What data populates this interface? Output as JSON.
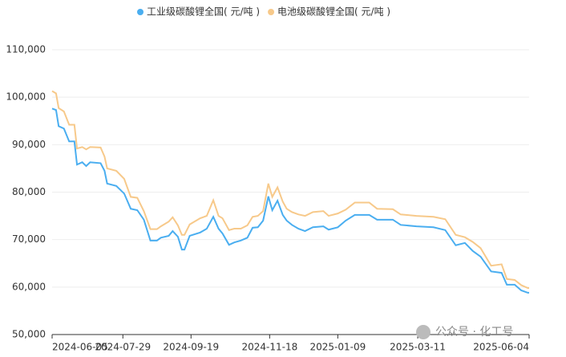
{
  "chart_data": {
    "type": "line",
    "x": [
      "2024-06-05",
      "2024-06-08",
      "2024-06-10",
      "2024-06-14",
      "2024-06-18",
      "2024-06-22",
      "2024-06-24",
      "2024-06-28",
      "2024-07-01",
      "2024-07-04",
      "2024-07-12",
      "2024-07-15",
      "2024-07-17",
      "2024-07-24",
      "2024-07-30",
      "2024-08-04",
      "2024-08-09",
      "2024-08-14",
      "2024-08-19",
      "2024-08-24",
      "2024-08-27",
      "2024-09-02",
      "2024-09-05",
      "2024-09-09",
      "2024-09-12",
      "2024-09-14",
      "2024-09-18",
      "2024-09-26",
      "2024-10-01",
      "2024-10-06",
      "2024-10-10",
      "2024-10-13",
      "2024-10-18",
      "2024-10-22",
      "2024-10-27",
      "2024-11-01",
      "2024-11-05",
      "2024-11-09",
      "2024-11-13",
      "2024-11-17",
      "2024-11-20",
      "2024-11-24",
      "2024-11-28",
      "2024-12-01",
      "2024-12-05",
      "2024-12-10",
      "2024-12-15",
      "2024-12-21",
      "2024-12-29",
      "2025-01-02",
      "2025-01-09",
      "2025-01-15",
      "2025-01-22",
      "2025-02-02",
      "2025-02-08",
      "2025-02-20",
      "2025-02-26",
      "2025-03-10",
      "2025-03-23",
      "2025-04-01",
      "2025-04-09",
      "2025-04-16",
      "2025-04-22",
      "2025-04-28",
      "2025-05-06",
      "2025-05-14",
      "2025-05-18",
      "2025-05-24",
      "2025-05-29",
      "2025-06-03",
      "2025-06-04"
    ],
    "series": [
      {
        "name": "工业级碳酸锂全国( 元/吨 )",
        "color": "#4aaef0",
        "values": [
          97600,
          97300,
          93900,
          93400,
          90700,
          90700,
          85800,
          86300,
          85500,
          86300,
          86100,
          84500,
          81800,
          81300,
          79700,
          76500,
          76200,
          74200,
          69800,
          69800,
          70400,
          70800,
          71800,
          70600,
          67900,
          67900,
          70800,
          71500,
          72300,
          74800,
          72300,
          71300,
          68900,
          69400,
          69800,
          70400,
          72500,
          72600,
          74000,
          79100,
          76200,
          78200,
          75200,
          74000,
          73100,
          72300,
          71800,
          72600,
          72800,
          72100,
          72600,
          74000,
          75200,
          75200,
          74200,
          74200,
          73100,
          72800,
          72600,
          72000,
          68800,
          69300,
          67600,
          66400,
          63300,
          63000,
          60500,
          60500,
          59300,
          58800,
          58800
        ]
      },
      {
        "name": "电池级碳酸锂全国( 元/吨 )",
        "color": "#f7c98a",
        "values": [
          101300,
          100800,
          97700,
          97000,
          94200,
          94200,
          89200,
          89500,
          89000,
          89500,
          89400,
          87500,
          85000,
          84500,
          82800,
          79000,
          78800,
          76000,
          72200,
          72200,
          72800,
          73800,
          74700,
          73000,
          71000,
          71000,
          73200,
          74500,
          75000,
          78300,
          75000,
          74500,
          72000,
          72300,
          72300,
          73000,
          74800,
          75000,
          76000,
          81800,
          79000,
          81000,
          78000,
          76500,
          75800,
          75300,
          75000,
          75800,
          76000,
          75000,
          75500,
          76300,
          77800,
          77800,
          76500,
          76400,
          75300,
          75000,
          74800,
          74300,
          71000,
          70500,
          69500,
          68200,
          64500,
          64800,
          61700,
          61500,
          60400,
          59800,
          59800
        ]
      }
    ],
    "xlim": [
      "2024-06-05",
      "2025-06-04"
    ],
    "xticks": [
      "2024-06-05",
      "2024-07-29",
      "2024-09-19",
      "2024-11-18",
      "2025-01-09",
      "2025-03-11",
      "2025-06-04"
    ],
    "ylim": [
      50000,
      110000
    ],
    "yticks": [
      {
        "value": 50000,
        "label": "50,000"
      },
      {
        "value": 60000,
        "label": "60,000"
      },
      {
        "value": 70000,
        "label": "70,000"
      },
      {
        "value": 80000,
        "label": "80,000"
      },
      {
        "value": 90000,
        "label": "90,000"
      },
      {
        "value": 100000,
        "label": "100,000"
      },
      {
        "value": 110000,
        "label": "110,000"
      }
    ],
    "grid": true,
    "legend": "top",
    "annotations": [
      "公众号 · 化工号"
    ]
  }
}
